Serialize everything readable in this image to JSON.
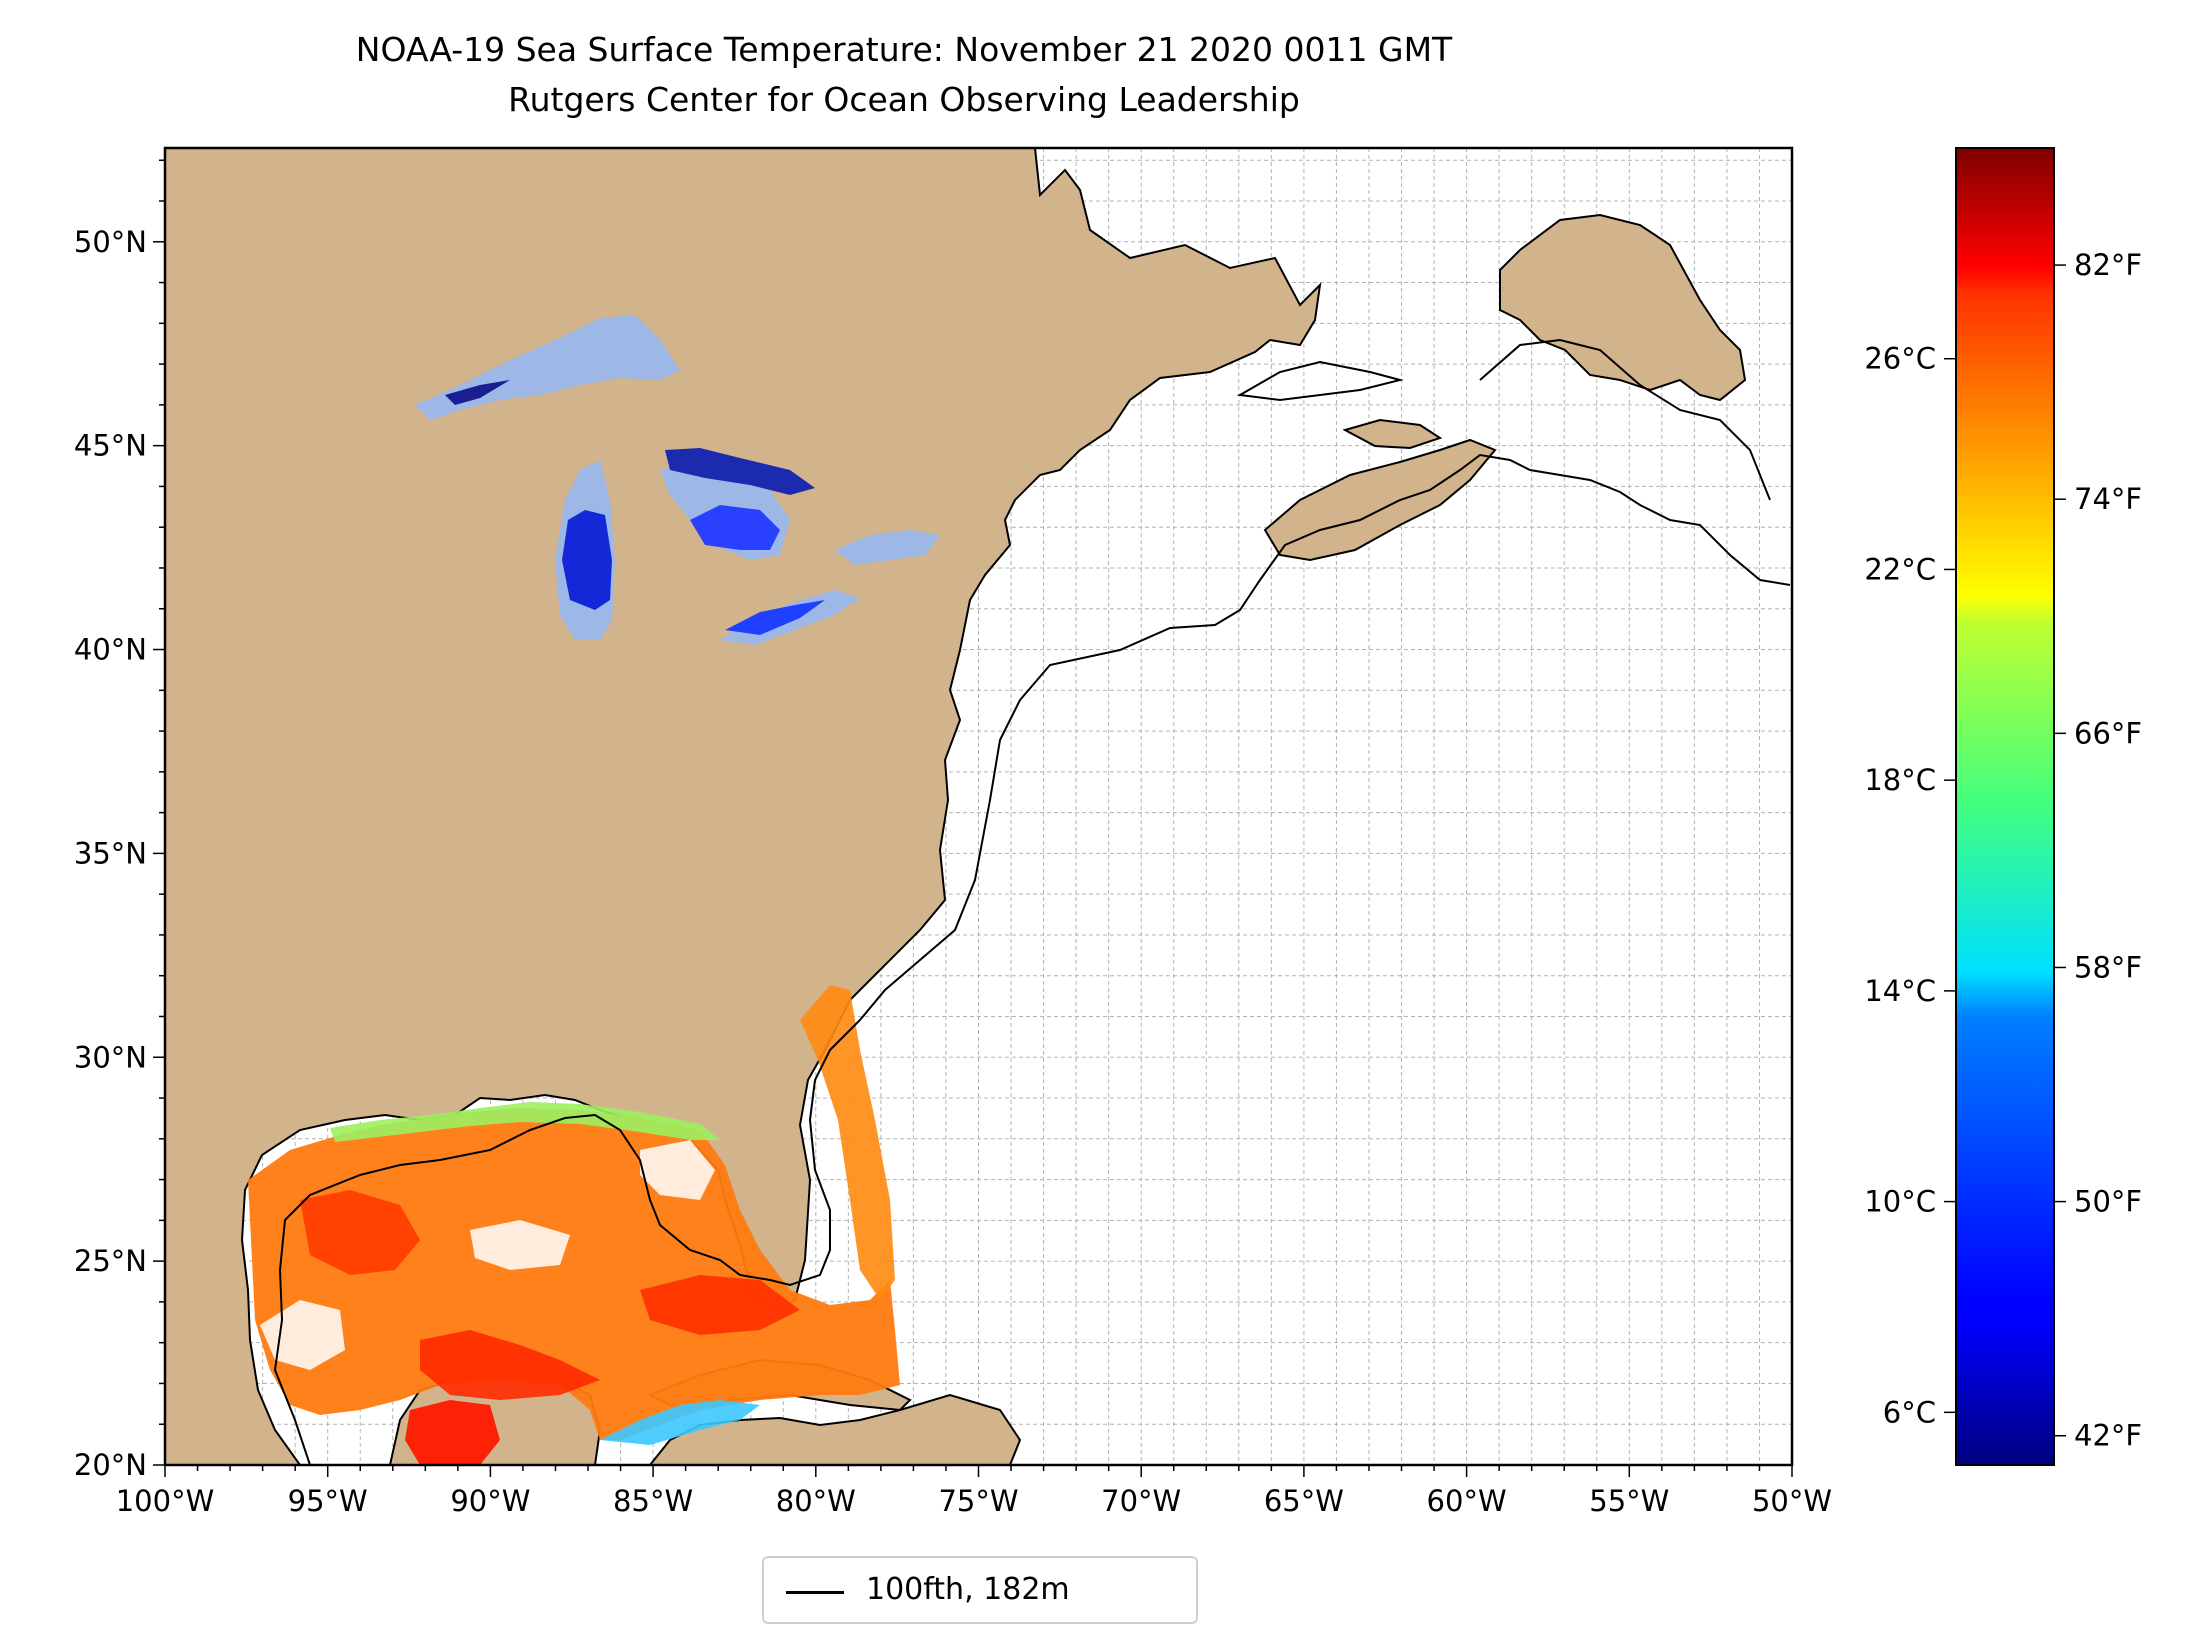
{
  "title": "NOAA-19 Sea Surface Temperature: November 21 2020 0011 GMT",
  "subtitle": "Rutgers Center for Ocean Observing Leadership",
  "map": {
    "lon_range": [
      -100,
      -50
    ],
    "lat_range": [
      20,
      52.3
    ],
    "lon_ticks": [
      {
        "value": -100,
        "label": "100°W"
      },
      {
        "value": -95,
        "label": "95°W"
      },
      {
        "value": -90,
        "label": "90°W"
      },
      {
        "value": -85,
        "label": "85°W"
      },
      {
        "value": -80,
        "label": "80°W"
      },
      {
        "value": -75,
        "label": "75°W"
      },
      {
        "value": -70,
        "label": "70°W"
      },
      {
        "value": -65,
        "label": "65°W"
      },
      {
        "value": -60,
        "label": "60°W"
      },
      {
        "value": -55,
        "label": "55°W"
      },
      {
        "value": -50,
        "label": "50°W"
      }
    ],
    "lat_ticks": [
      {
        "value": 20,
        "label": "20°N"
      },
      {
        "value": 25,
        "label": "25°N"
      },
      {
        "value": 30,
        "label": "30°N"
      },
      {
        "value": 35,
        "label": "35°N"
      },
      {
        "value": 40,
        "label": "40°N"
      },
      {
        "value": 45,
        "label": "45°N"
      },
      {
        "value": 50,
        "label": "50°N"
      }
    ],
    "grid": true,
    "land_color": "#d2b48c",
    "ocean_color": "#ffffff",
    "lake_color": "#9db7e6"
  },
  "colorbar": {
    "colormap": "jet",
    "range_f": [
      41,
      86
    ],
    "celsius_ticks": [
      {
        "value": 6,
        "label": "6°C"
      },
      {
        "value": 10,
        "label": "10°C"
      },
      {
        "value": 14,
        "label": "14°C"
      },
      {
        "value": 18,
        "label": "18°C"
      },
      {
        "value": 22,
        "label": "22°C"
      },
      {
        "value": 26,
        "label": "26°C"
      }
    ],
    "fahrenheit_ticks": [
      {
        "value": 42,
        "label": "42°F"
      },
      {
        "value": 50,
        "label": "50°F"
      },
      {
        "value": 58,
        "label": "58°F"
      },
      {
        "value": 66,
        "label": "66°F"
      },
      {
        "value": 74,
        "label": "74°F"
      },
      {
        "value": 82,
        "label": "82°F"
      }
    ]
  },
  "legend": {
    "label": "100fth, 182m",
    "line_color": "#000000"
  }
}
